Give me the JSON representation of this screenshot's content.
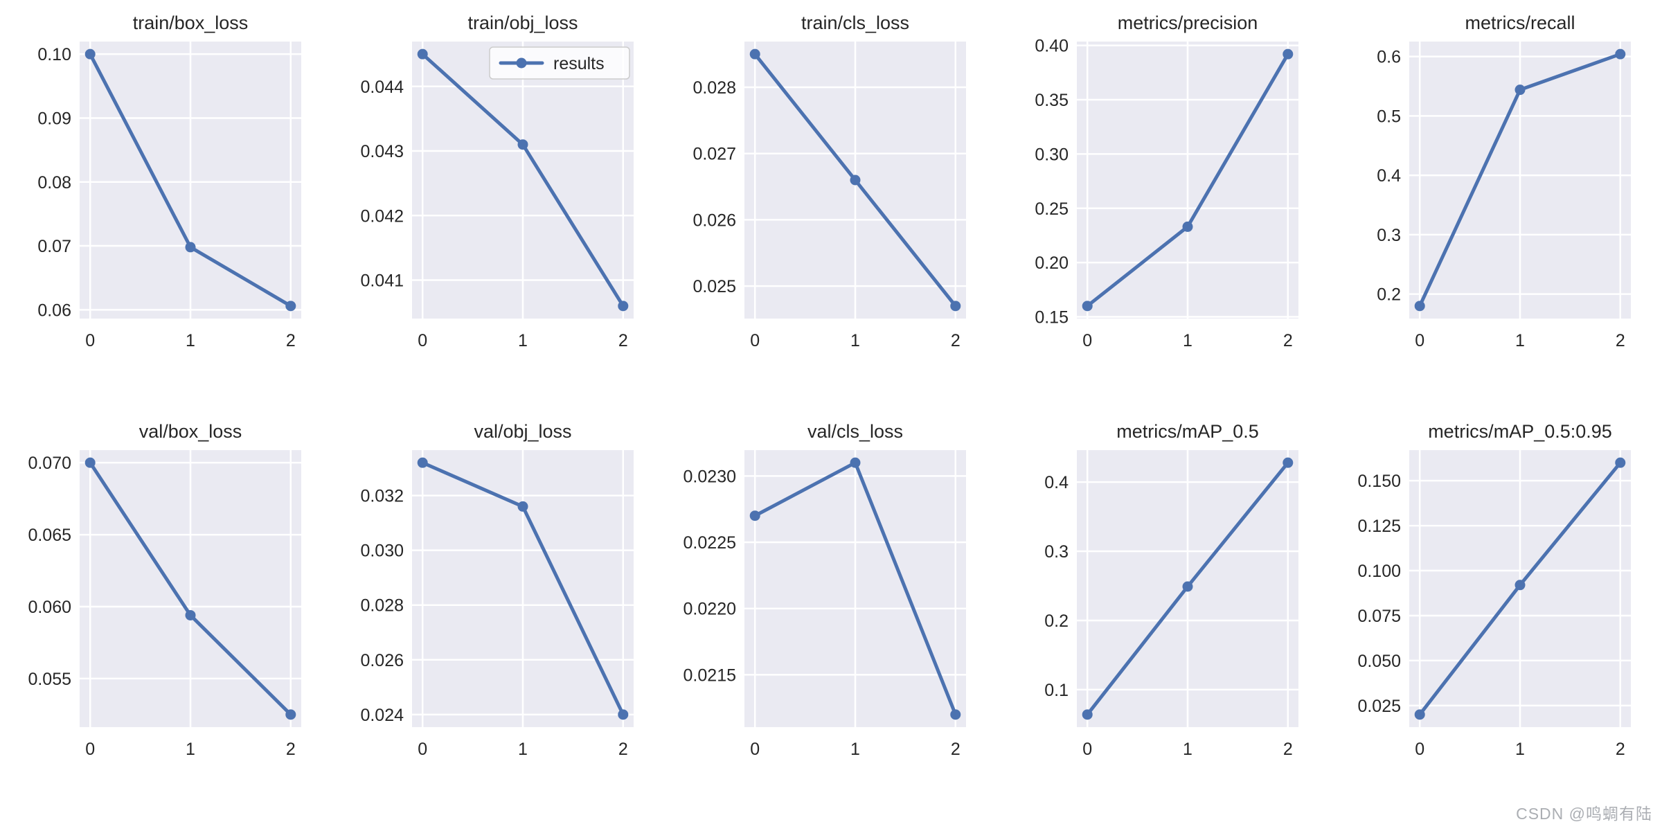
{
  "style": {
    "line_color": "#4c72b0",
    "axes_bg": "#eaeaf2",
    "grid_color": "#ffffff",
    "text_color": "#262626",
    "legend_border": "#cccccc",
    "watermark_color": "#abaeb3"
  },
  "watermark": "CSDN @鸣蜩有陆",
  "chart_data": [
    {
      "type": "line",
      "title": "train/box_loss",
      "x": [
        0,
        1,
        2
      ],
      "values": [
        0.1,
        0.0698,
        0.0606
      ],
      "yticks": [
        0.1,
        0.09,
        0.08,
        0.07,
        0.06
      ],
      "ytick_labels": [
        "0.10",
        "0.09",
        "0.08",
        "0.07",
        "0.06"
      ],
      "xticks": [
        0,
        1,
        2
      ],
      "xtick_labels": [
        "0",
        "1",
        "2"
      ],
      "grid": true
    },
    {
      "type": "line",
      "title": "train/obj_loss",
      "x": [
        0,
        1,
        2
      ],
      "values": [
        0.0445,
        0.0431,
        0.0406
      ],
      "yticks": [
        0.044,
        0.043,
        0.042,
        0.041
      ],
      "ytick_labels": [
        "0.044",
        "0.043",
        "0.042",
        "0.041"
      ],
      "xticks": [
        0,
        1,
        2
      ],
      "xtick_labels": [
        "0",
        "1",
        "2"
      ],
      "grid": true,
      "legend_label": "results",
      "legend_position": "upper right"
    },
    {
      "type": "line",
      "title": "train/cls_loss",
      "x": [
        0,
        1,
        2
      ],
      "values": [
        0.0285,
        0.0266,
        0.0247
      ],
      "yticks": [
        0.028,
        0.027,
        0.026,
        0.025
      ],
      "ytick_labels": [
        "0.028",
        "0.027",
        "0.026",
        "0.025"
      ],
      "xticks": [
        0,
        1,
        2
      ],
      "xtick_labels": [
        "0",
        "1",
        "2"
      ],
      "grid": true
    },
    {
      "type": "line",
      "title": "metrics/precision",
      "x": [
        0,
        1,
        2
      ],
      "values": [
        0.16,
        0.233,
        0.392
      ],
      "yticks": [
        0.4,
        0.35,
        0.3,
        0.25,
        0.2,
        0.15
      ],
      "ytick_labels": [
        "0.40",
        "0.35",
        "0.30",
        "0.25",
        "0.20",
        "0.15"
      ],
      "xticks": [
        0,
        1,
        2
      ],
      "xtick_labels": [
        "0",
        "1",
        "2"
      ],
      "grid": true
    },
    {
      "type": "line",
      "title": "metrics/recall",
      "x": [
        0,
        1,
        2
      ],
      "values": [
        0.18,
        0.544,
        0.604
      ],
      "yticks": [
        0.6,
        0.5,
        0.4,
        0.3,
        0.2
      ],
      "ytick_labels": [
        "0.6",
        "0.5",
        "0.4",
        "0.3",
        "0.2"
      ],
      "xticks": [
        0,
        1,
        2
      ],
      "xtick_labels": [
        "0",
        "1",
        "2"
      ],
      "grid": true
    },
    {
      "type": "line",
      "title": "val/box_loss",
      "x": [
        0,
        1,
        2
      ],
      "values": [
        0.07,
        0.0594,
        0.0525
      ],
      "yticks": [
        0.07,
        0.065,
        0.06,
        0.055
      ],
      "ytick_labels": [
        "0.070",
        "0.065",
        "0.060",
        "0.055"
      ],
      "xticks": [
        0,
        1,
        2
      ],
      "xtick_labels": [
        "0",
        "1",
        "2"
      ],
      "grid": true
    },
    {
      "type": "line",
      "title": "val/obj_loss",
      "x": [
        0,
        1,
        2
      ],
      "values": [
        0.0332,
        0.0316,
        0.024
      ],
      "yticks": [
        0.032,
        0.03,
        0.028,
        0.026,
        0.024
      ],
      "ytick_labels": [
        "0.032",
        "0.030",
        "0.028",
        "0.026",
        "0.024"
      ],
      "xticks": [
        0,
        1,
        2
      ],
      "xtick_labels": [
        "0",
        "1",
        "2"
      ],
      "grid": true
    },
    {
      "type": "line",
      "title": "val/cls_loss",
      "x": [
        0,
        1,
        2
      ],
      "values": [
        0.0227,
        0.0231,
        0.0212
      ],
      "yticks": [
        0.023,
        0.0225,
        0.022,
        0.0215
      ],
      "ytick_labels": [
        "0.0230",
        "0.0225",
        "0.0220",
        "0.0215"
      ],
      "xticks": [
        0,
        1,
        2
      ],
      "xtick_labels": [
        "0",
        "1",
        "2"
      ],
      "grid": true
    },
    {
      "type": "line",
      "title": "metrics/mAP_0.5",
      "x": [
        0,
        1,
        2
      ],
      "values": [
        0.064,
        0.249,
        0.428
      ],
      "yticks": [
        0.4,
        0.3,
        0.2,
        0.1
      ],
      "ytick_labels": [
        "0.4",
        "0.3",
        "0.2",
        "0.1"
      ],
      "xticks": [
        0,
        1,
        2
      ],
      "xtick_labels": [
        "0",
        "1",
        "2"
      ],
      "grid": true
    },
    {
      "type": "line",
      "title": "metrics/mAP_0.5:0.95",
      "x": [
        0,
        1,
        2
      ],
      "values": [
        0.02,
        0.092,
        0.16
      ],
      "yticks": [
        0.15,
        0.125,
        0.1,
        0.075,
        0.05,
        0.025
      ],
      "ytick_labels": [
        "0.150",
        "0.125",
        "0.100",
        "0.075",
        "0.050",
        "0.025"
      ],
      "xticks": [
        0,
        1,
        2
      ],
      "xtick_labels": [
        "0",
        "1",
        "2"
      ],
      "grid": true
    }
  ]
}
